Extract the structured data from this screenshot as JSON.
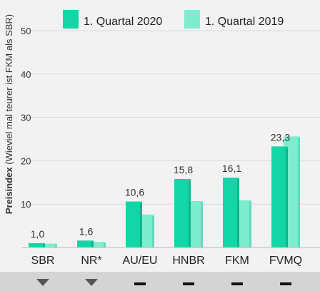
{
  "chart_data": {
    "type": "bar",
    "ylabel_bold": "Preisindex",
    "ylabel_rest": " (Wieviel mal teurer ist FKM als SBR)",
    "ylim": [
      0,
      50
    ],
    "yticks": [
      "10",
      "20",
      "30",
      "40",
      "50"
    ],
    "categories": [
      "SBR",
      "NR*",
      "AU/EU",
      "HNBR",
      "FKM",
      "FVMQ"
    ],
    "series": [
      {
        "name": "1. Quartal 2020",
        "color": "#12d6a6",
        "values": [
          1.0,
          1.6,
          10.6,
          15.8,
          16.1,
          23.3
        ]
      },
      {
        "name": "1. Quartal 2019",
        "color": "#7deccf",
        "values": [
          0.9,
          1.3,
          7.6,
          10.7,
          10.9,
          25.6
        ]
      }
    ],
    "value_labels": [
      "1,0",
      "1,6",
      "10,6",
      "15,8",
      "16,1",
      "23,3"
    ],
    "legend_position": "top",
    "trend": [
      "down-triangle",
      "down-triangle",
      "dash",
      "dash",
      "dash",
      "dash"
    ]
  }
}
